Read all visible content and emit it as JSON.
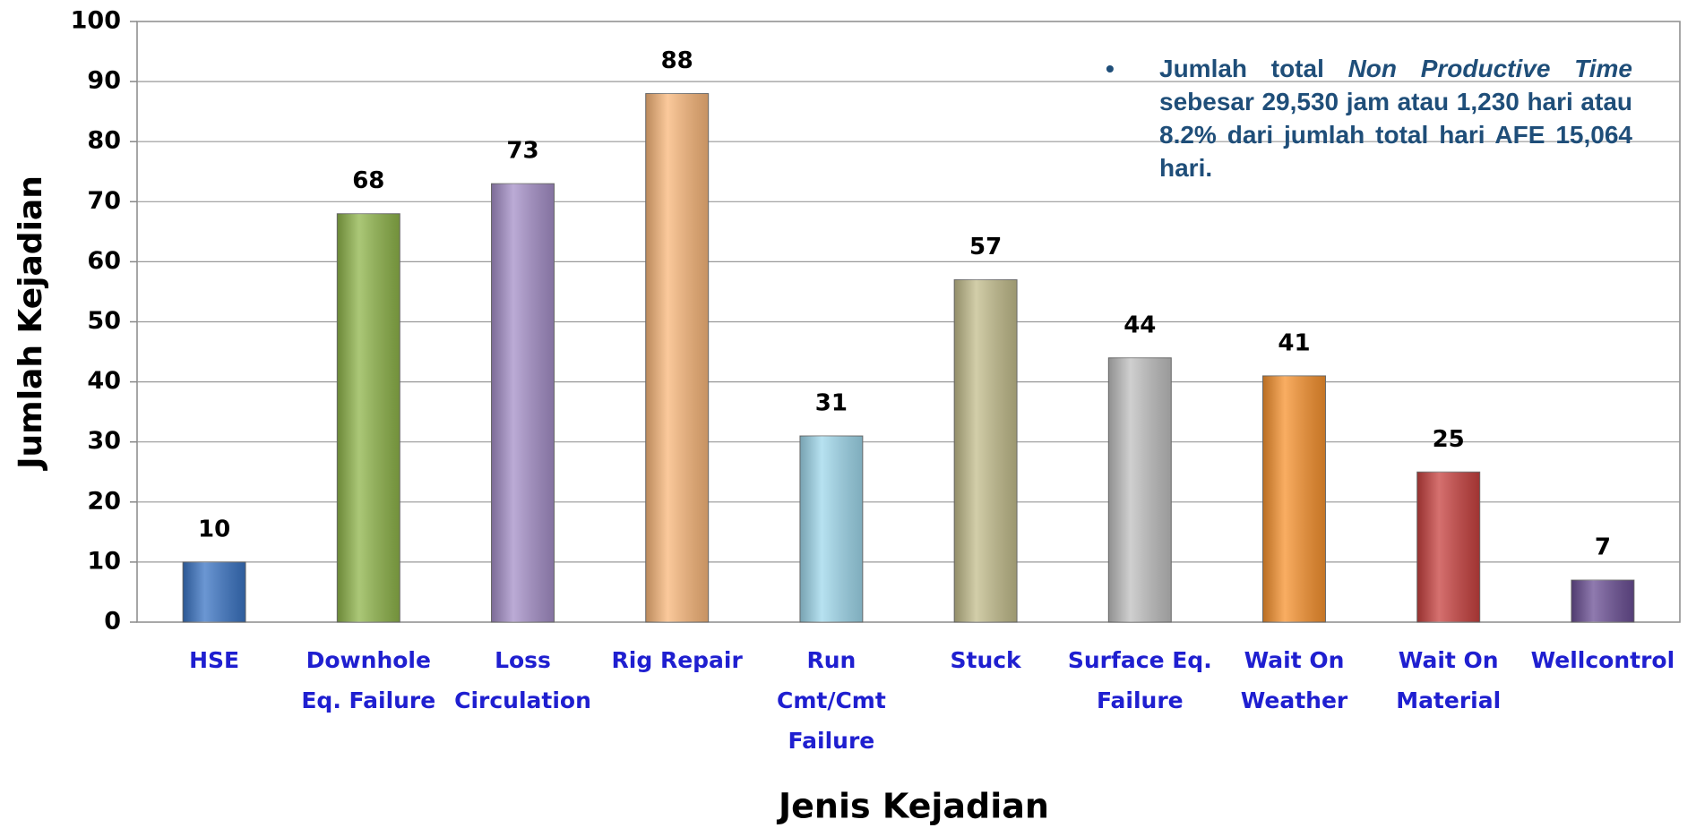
{
  "chart_data": {
    "type": "bar",
    "categories": [
      "HSE",
      "Downhole Eq. Failure",
      "Loss Circulation",
      "Rig Repair",
      "Run Cmt/Cmt Failure",
      "Stuck",
      "Surface Eq. Failure",
      "Wait On Weather",
      "Wait On Material",
      "Wellcontrol"
    ],
    "values": [
      10,
      68,
      73,
      88,
      31,
      57,
      44,
      41,
      25,
      7
    ],
    "colors": [
      "#3a74c4",
      "#8fb54a",
      "#a58fc8",
      "#f9b77a",
      "#9fd8ec",
      "#c3bd8c",
      "#c0c0c0",
      "#f7922e",
      "#c8413f",
      "#6a4e94"
    ],
    "ylim": [
      0,
      100
    ],
    "yticks": [
      0,
      10,
      20,
      30,
      40,
      50,
      60,
      70,
      80,
      90,
      100
    ],
    "grid": true,
    "x_label": "Jenis Kejadian",
    "y_label": "Jumlah Kejadian",
    "annotation": {
      "bullet": "•",
      "before": "Jumlah total ",
      "italic": "Non Productive Time",
      "after": " sebesar 29,530 jam atau 1,230 hari atau 8.2% dari jumlah total hari AFE 15,064 hari."
    }
  }
}
